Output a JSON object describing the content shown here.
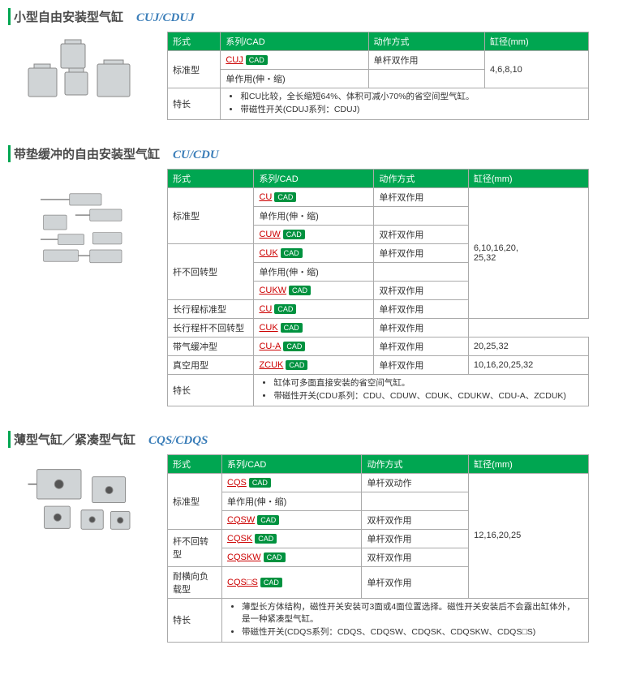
{
  "colors": {
    "accent": "#00a651",
    "model": "#3a7db8",
    "link": "#c00",
    "border": "#aaa"
  },
  "sections": [
    {
      "title": "小型自由安装型气缸",
      "model": "CUJ/CDUJ",
      "headers": [
        "形式",
        "系列/CAD",
        "动作方式",
        "缸径(mm)"
      ],
      "rows": [
        {
          "form": "标准型",
          "form_rowspan": 2,
          "series": "CUJ",
          "action": "单杆双作用",
          "bore": "4,6,8,10",
          "bore_rowspan": 2
        },
        {
          "action": "单作用(伸・缩)"
        }
      ],
      "notes_label": "特长",
      "notes": [
        "和CU比较，全长缩短64%、体积可减小70%的省空间型气缸。",
        "带磁性开关(CDUJ系列：CDUJ)"
      ]
    },
    {
      "title": "带垫缓冲的自由安装型气缸",
      "model": "CU/CDU",
      "headers": [
        "形式",
        "系列/CAD",
        "动作方式",
        "缸径(mm)"
      ],
      "rows": [
        {
          "form": "标准型",
          "form_rowspan": 3,
          "series": "CU",
          "action": "单杆双作用",
          "bore": "6,10,16,20,\n25,32",
          "bore_rowspan": 7
        },
        {
          "action": "单作用(伸・缩)"
        },
        {
          "series": "CUW",
          "action": "双杆双作用"
        },
        {
          "form": "杆不回转型",
          "form_rowspan": 3,
          "series": "CUK",
          "action": "单杆双作用"
        },
        {
          "action": "单作用(伸・缩)"
        },
        {
          "series": "CUKW",
          "action": "双杆双作用"
        },
        {
          "form": "长行程标准型",
          "series": "CU",
          "action": "单杆双作用"
        },
        {
          "form": "长行程杆不回转型",
          "series": "CUK",
          "action": "单杆双作用"
        },
        {
          "form": "带气缓冲型",
          "series": "CU-A",
          "action": "单杆双作用",
          "bore": "20,25,32"
        },
        {
          "form": "真空用型",
          "series": "ZCUK",
          "action": "单杆双作用",
          "bore": "10,16,20,25,32"
        }
      ],
      "notes_label": "特长",
      "notes": [
        "缸体可多面直接安装的省空间气缸。",
        "带磁性开关(CDU系列：CDU、CDUW、CDUK、CDUKW、CDU-A、ZCDUK)"
      ]
    },
    {
      "title": "薄型气缸／紧凑型气缸",
      "model": "CQS/CDQS",
      "headers": [
        "形式",
        "系列/CAD",
        "动作方式",
        "缸径(mm)"
      ],
      "rows": [
        {
          "form": "标准型",
          "form_rowspan": 3,
          "series": "CQS",
          "action": "单杆双动作",
          "bore": "12,16,20,25",
          "bore_rowspan": 6
        },
        {
          "action": "单作用(伸・缩)"
        },
        {
          "series": "CQSW",
          "action": "双杆双作用"
        },
        {
          "form": "杆不回转型",
          "form_rowspan": 2,
          "series": "CQSK",
          "action": "单杆双作用"
        },
        {
          "series": "CQSKW",
          "action": "双杆双作用"
        },
        {
          "form": "耐横向负载型",
          "series": "CQS□S",
          "action": "单杆双作用"
        }
      ],
      "notes_label": "特长",
      "notes": [
        "薄型长方体结构，磁性开关安装可3面或4面位置选择。磁性开关安装后不会露出缸体外，是一种紧凑型气缸。",
        "带磁性开关(CDQS系列：CDQS、CDQSW、CDQSK、CDQSKW、CDQS□S)"
      ]
    }
  ]
}
